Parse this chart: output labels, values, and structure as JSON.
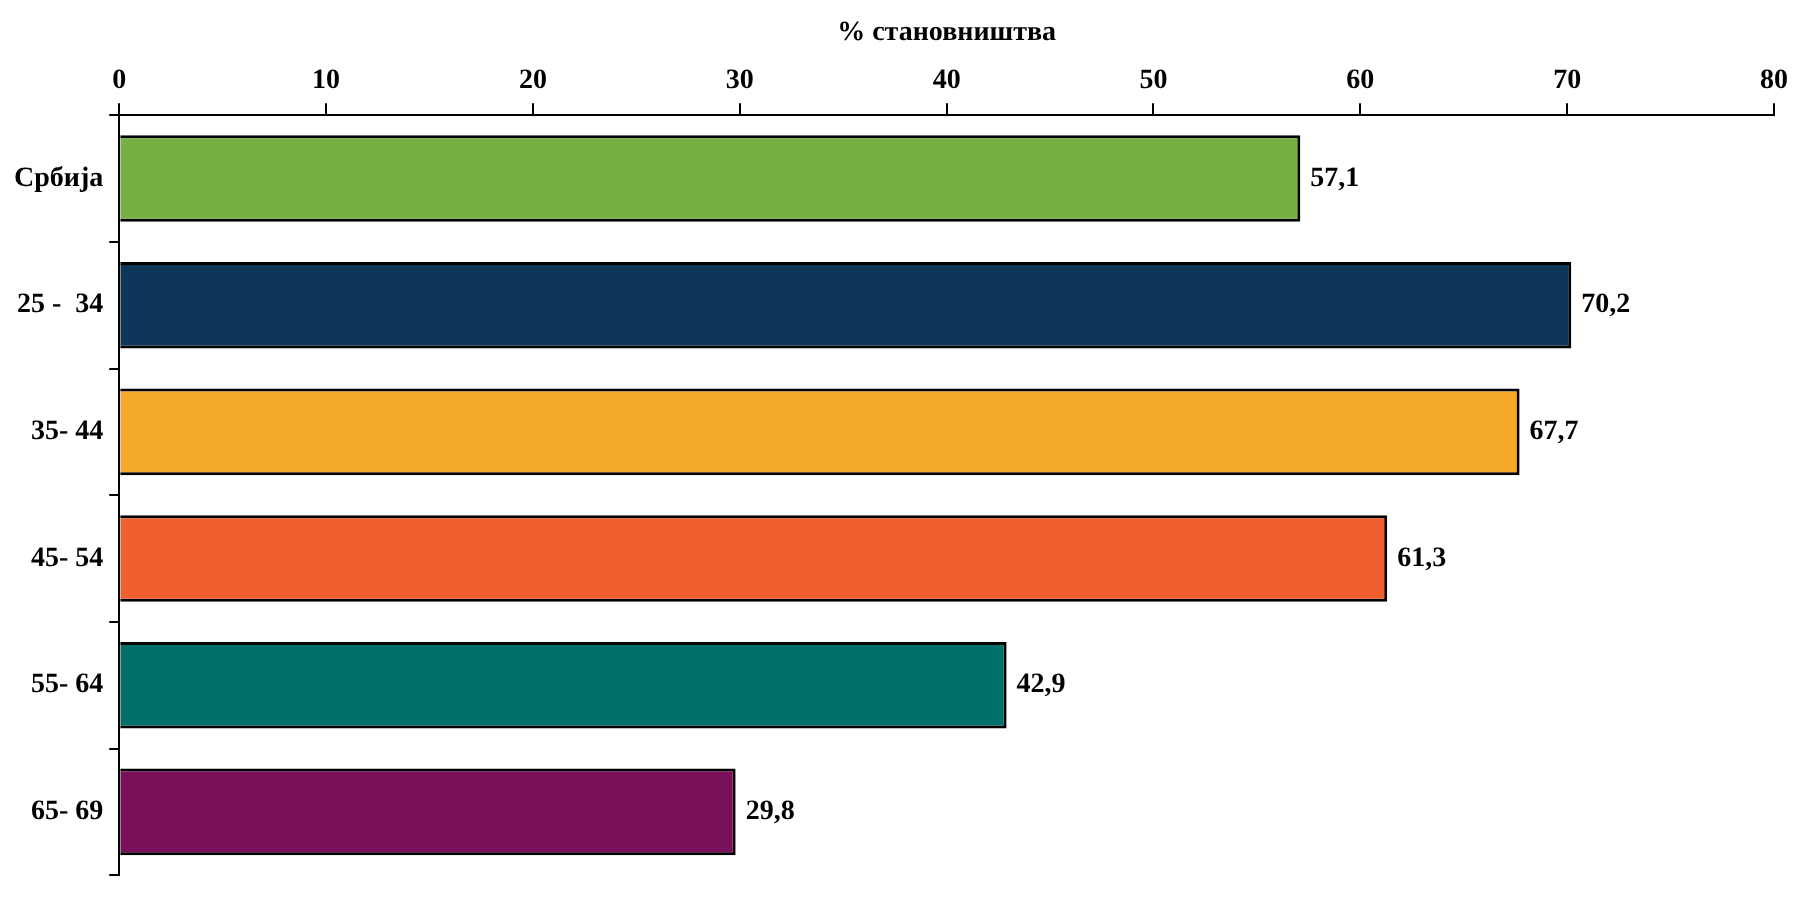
{
  "chart_data": {
    "type": "bar",
    "orientation": "horizontal",
    "xlabel": "% становништва",
    "categories": [
      "Србија",
      "25 -  34",
      "35- 44",
      "45- 54",
      "55- 64",
      "65- 69"
    ],
    "values": [
      57.1,
      70.2,
      67.7,
      61.3,
      42.9,
      29.8
    ],
    "colors": [
      "#76b043",
      "#0e3659",
      "#f5a928",
      "#f0602f",
      "#00706a",
      "#7a0f5a"
    ],
    "value_labels": [
      "57,1",
      "70,2",
      "67,7",
      "61,3",
      "42,9",
      "29,8"
    ],
    "xlim": [
      0,
      80
    ],
    "xticks": [
      0,
      10,
      20,
      30,
      40,
      50,
      60,
      70,
      80
    ],
    "grid": false,
    "legend": false
  }
}
